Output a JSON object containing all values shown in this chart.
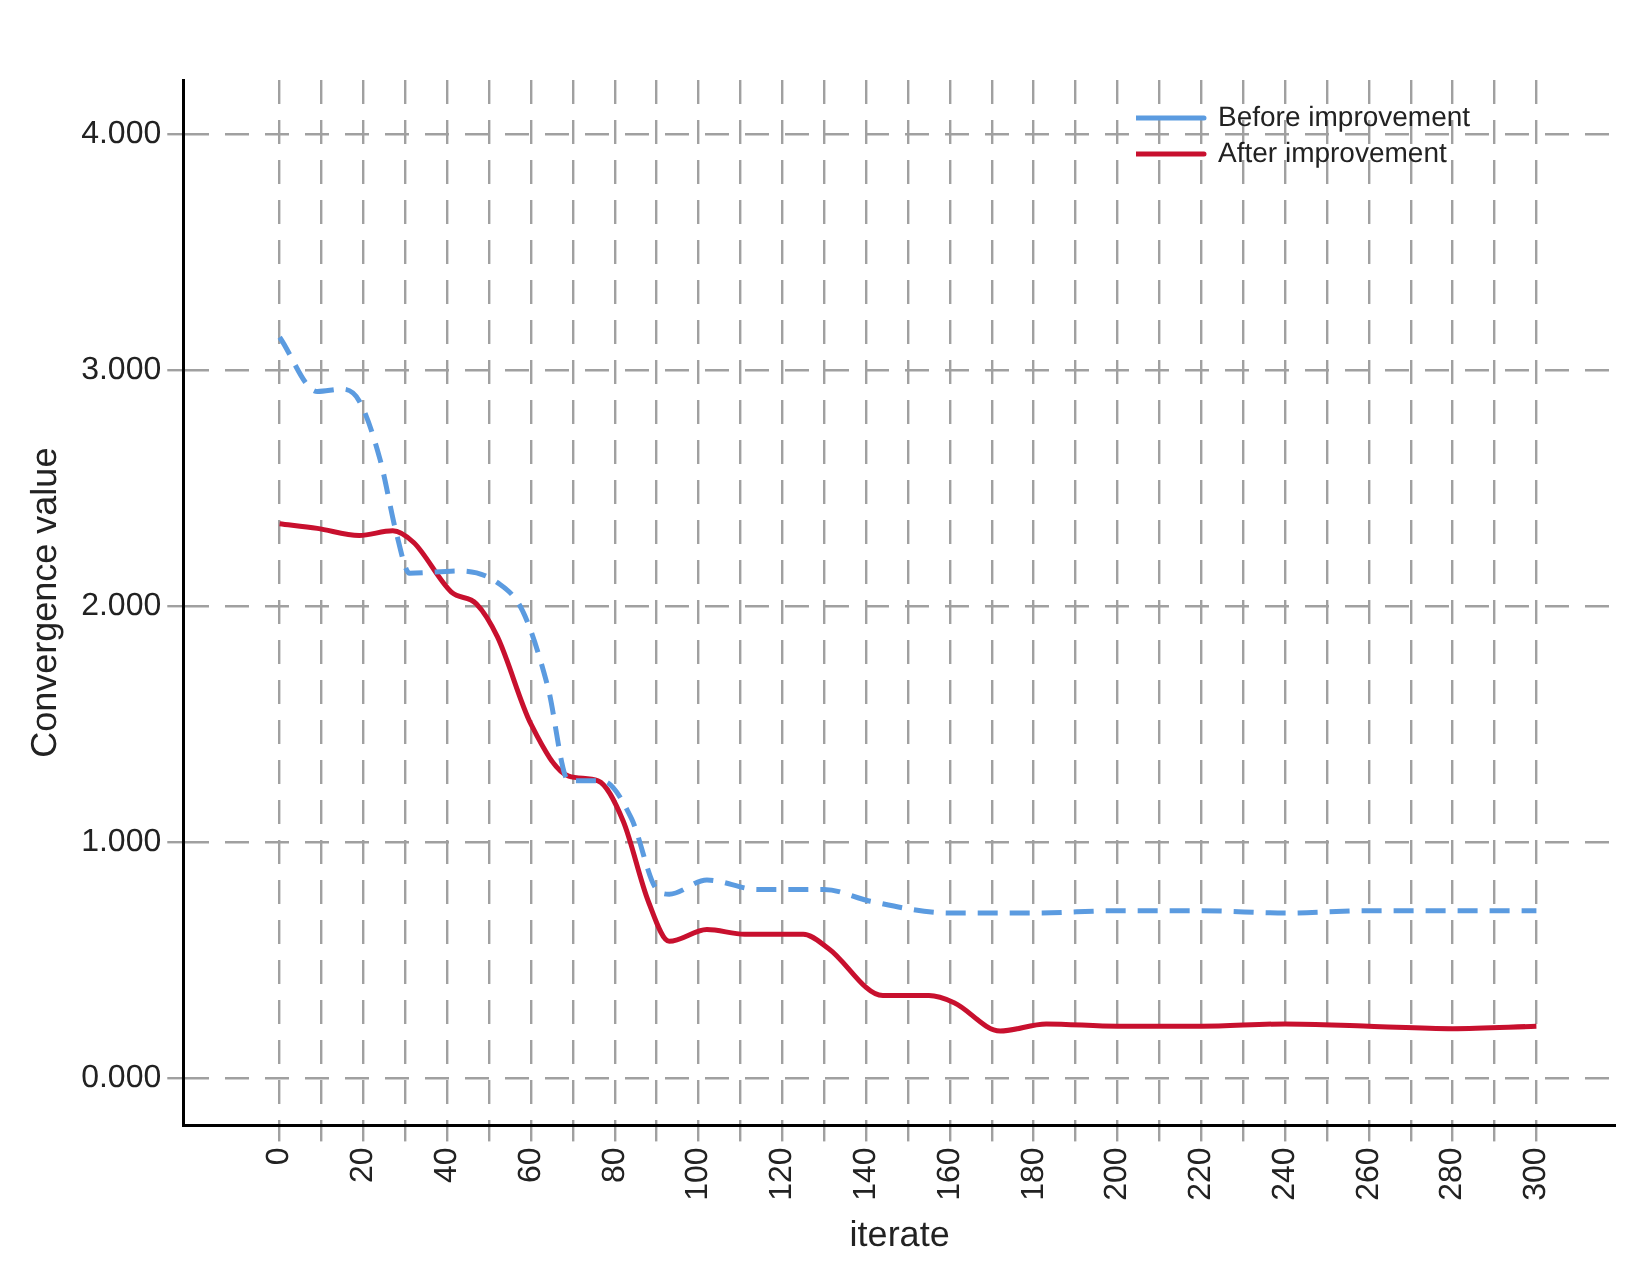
{
  "chart_data": {
    "type": "line",
    "xlabel": "iterate",
    "ylabel": "Convergence value",
    "xlim": [
      -23,
      319
    ],
    "ylim": [
      -0.2,
      4.23
    ],
    "xticks": [
      0,
      {
        "value": 10,
        "label": null
      },
      20,
      {
        "value": 30,
        "label": null
      },
      40,
      {
        "value": 50,
        "label": null
      },
      60,
      {
        "value": 70,
        "label": null
      },
      80,
      {
        "value": 90,
        "label": null
      },
      100,
      {
        "value": 110,
        "label": null
      },
      120,
      {
        "value": 130,
        "label": null
      },
      140,
      {
        "value": 150,
        "label": null
      },
      160,
      {
        "value": 170,
        "label": null
      },
      180,
      {
        "value": 190,
        "label": null
      },
      200,
      {
        "value": 210,
        "label": null
      },
      220,
      {
        "value": 230,
        "label": null
      },
      240,
      {
        "value": 250,
        "label": null
      },
      260,
      {
        "value": 270,
        "label": null
      },
      280,
      {
        "value": 290,
        "label": null
      },
      300
    ],
    "yticks": [
      {
        "value": 0,
        "label": "0.000"
      },
      {
        "value": 1,
        "label": "1.000"
      },
      {
        "value": 2,
        "label": "2.000"
      },
      {
        "value": 3,
        "label": "3.000"
      },
      {
        "value": 4,
        "label": "4.000"
      }
    ],
    "grid": true,
    "legend": "top right",
    "marker": "none",
    "series": [
      {
        "name": "Before improvement",
        "color": "#5b9be0",
        "line_style": "dashed",
        "x": [
          0,
          9,
          15,
          19,
          24,
          28,
          31,
          43,
          52,
          58,
          64,
          69,
          77,
          84,
          90,
          93,
          102,
          114,
          130,
          141,
          160,
          180,
          200,
          220,
          240,
          260,
          280,
          300
        ],
        "values": [
          3.14,
          2.91,
          2.92,
          2.87,
          2.62,
          2.3,
          2.14,
          2.15,
          2.1,
          1.98,
          1.66,
          1.26,
          1.26,
          1.1,
          0.8,
          0.78,
          0.84,
          0.8,
          0.8,
          0.75,
          0.7,
          0.7,
          0.71,
          0.71,
          0.7,
          0.71,
          0.71,
          0.71
        ]
      },
      {
        "name": "After improvement",
        "color": "#c8102e",
        "line_style": "solid",
        "x": [
          0,
          9,
          19,
          27,
          32,
          41,
          47,
          52,
          60,
          69,
          76,
          82,
          88,
          93,
          102,
          111,
          125,
          131,
          144,
          155,
          161,
          172,
          183,
          200,
          220,
          240,
          260,
          280,
          300
        ],
        "values": [
          2.35,
          2.33,
          2.3,
          2.32,
          2.27,
          2.06,
          2.01,
          1.87,
          1.5,
          1.28,
          1.26,
          1.09,
          0.75,
          0.58,
          0.63,
          0.61,
          0.61,
          0.55,
          0.35,
          0.35,
          0.32,
          0.2,
          0.23,
          0.22,
          0.22,
          0.23,
          0.22,
          0.21,
          0.22
        ]
      }
    ]
  }
}
